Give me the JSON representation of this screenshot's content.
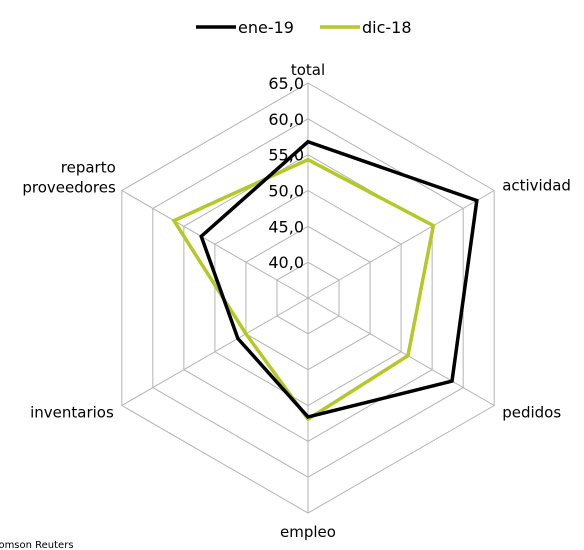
{
  "chart_data": {
    "type": "radar",
    "axes": [
      "total",
      "actividad",
      "pedidos",
      "empleo",
      "inventarios",
      "reparto proveedores"
    ],
    "axis_label_lines": [
      [
        "total"
      ],
      [
        "actividad"
      ],
      [
        "pedidos"
      ],
      [
        "empleo"
      ],
      [
        "inventarios"
      ],
      [
        "reparto",
        "proveedores"
      ]
    ],
    "rmin": 35,
    "rmax": 65,
    "ticks": [
      40,
      45,
      50,
      55,
      60,
      65
    ],
    "tick_labels": [
      "40,0",
      "45,0",
      "50,0",
      "55,0",
      "60,0",
      "65,0"
    ],
    "series": [
      {
        "name": "ene-19",
        "color": "#000000",
        "values": [
          56.8,
          62.2,
          58.2,
          51.6,
          46.3,
          52.2
        ]
      },
      {
        "name": "dic-18",
        "color": "#b5c826",
        "values": [
          54.3,
          55.2,
          51.1,
          51.9,
          45.0,
          56.6
        ]
      }
    ],
    "grid": true,
    "legend_position": "top-center"
  },
  "source_text": "Thomson Reuters"
}
